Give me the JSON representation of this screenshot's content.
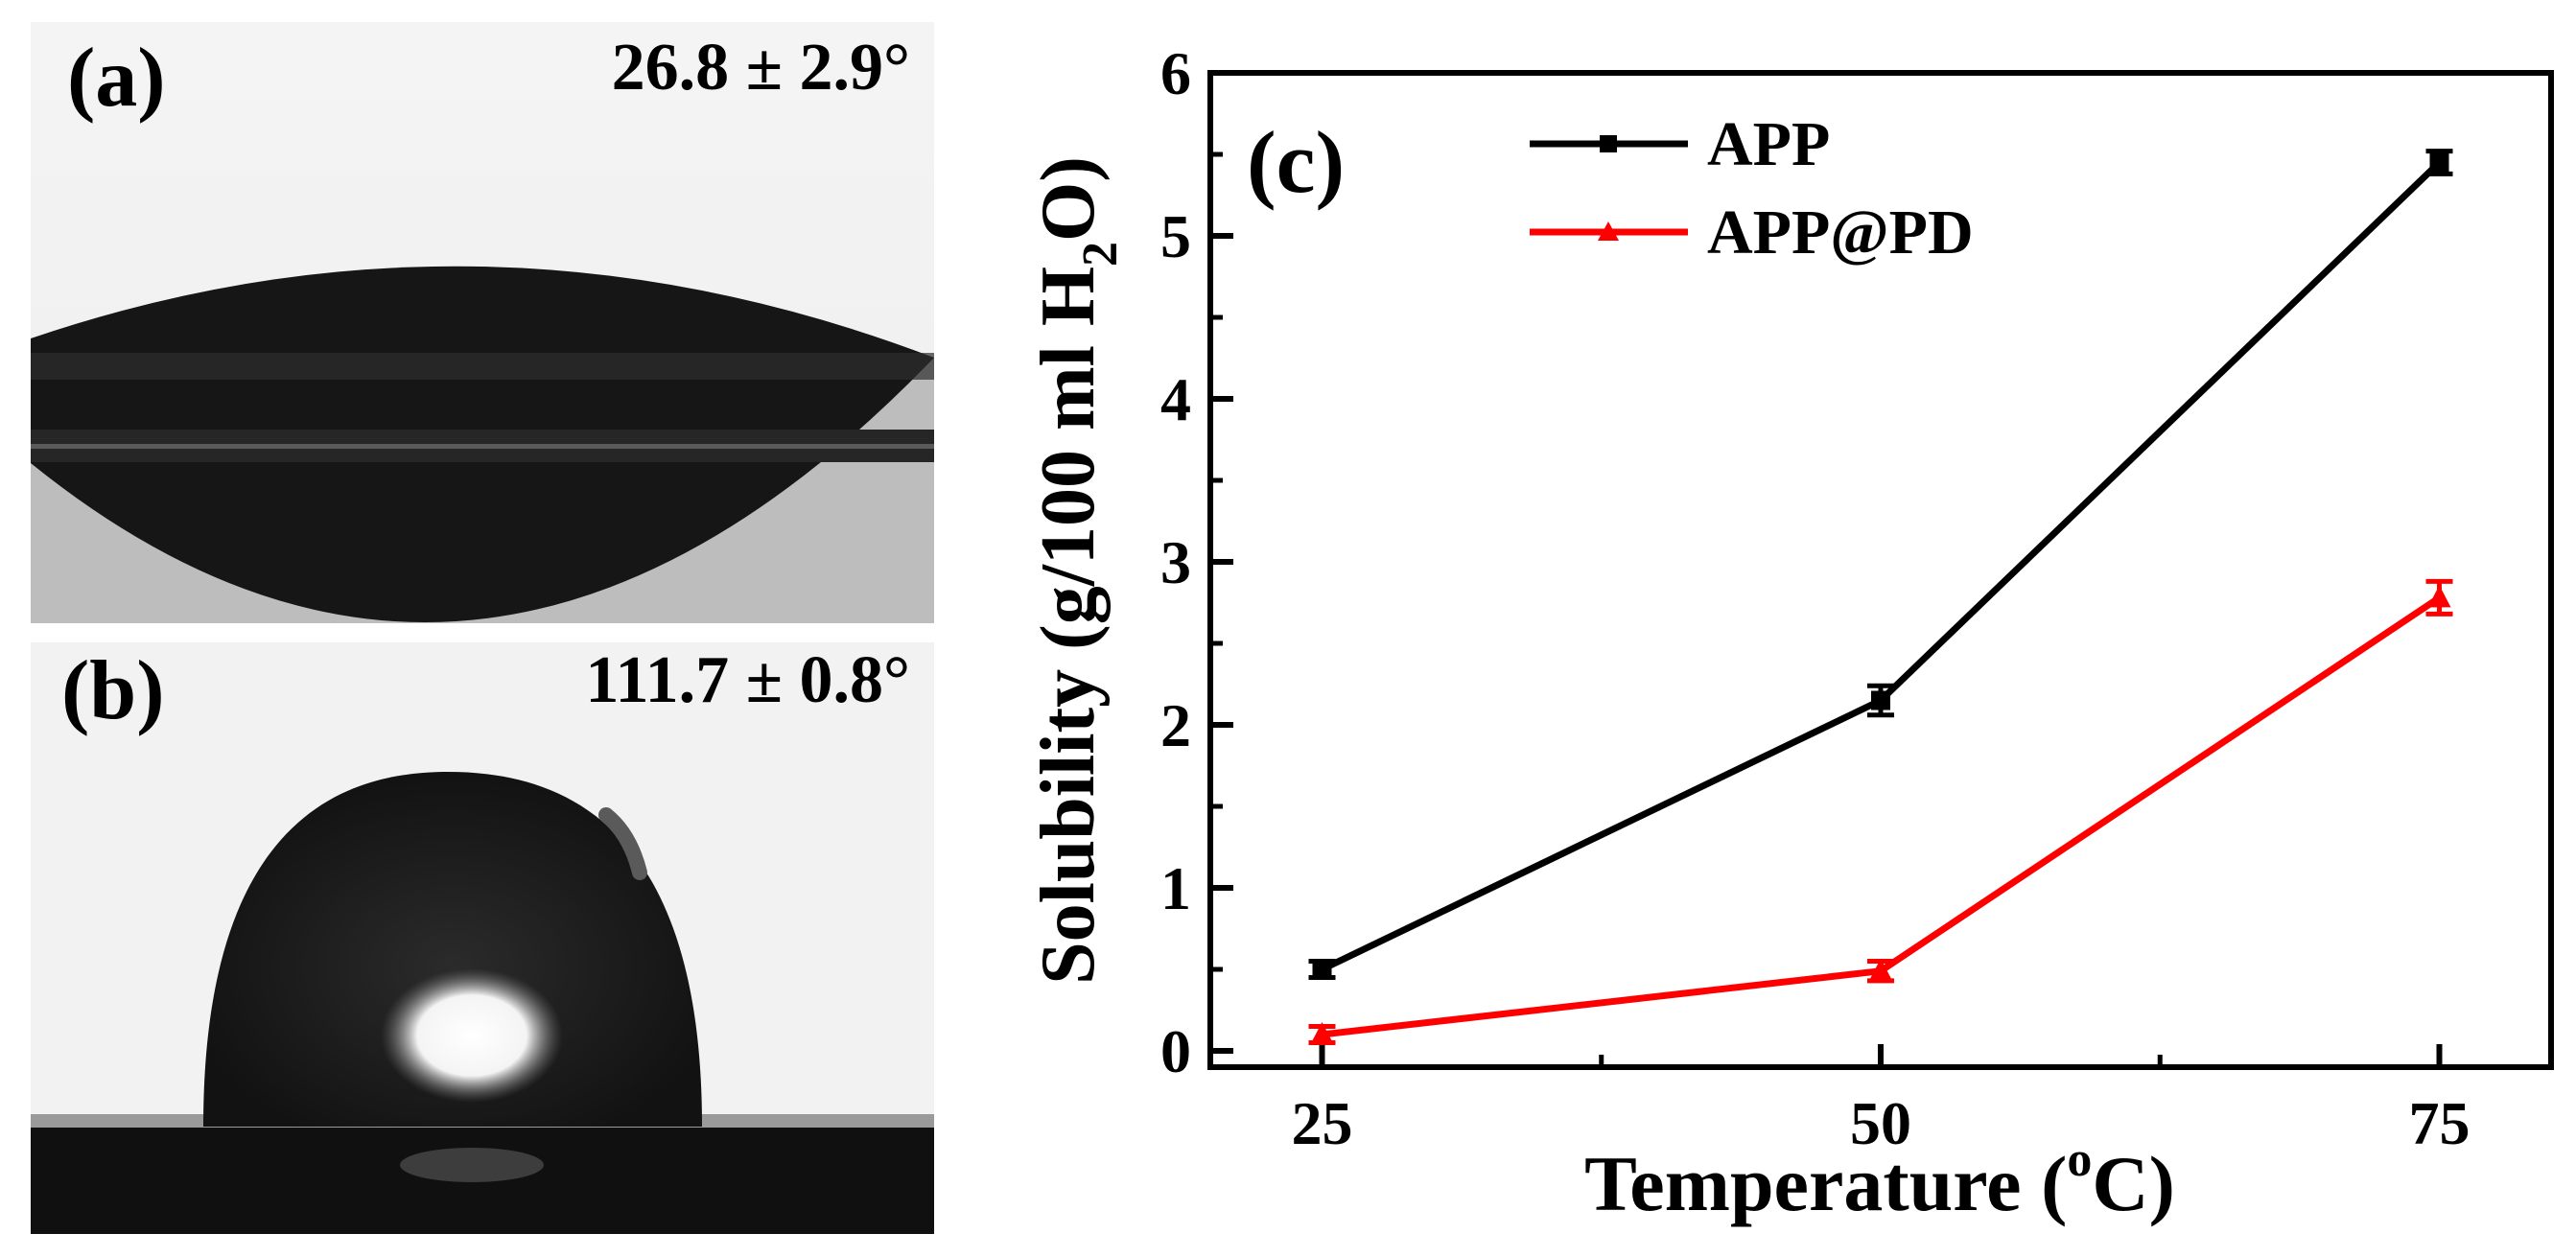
{
  "panels": {
    "a": {
      "label": "(a)",
      "contact_angle": "26.8 ± 2.9°"
    },
    "b": {
      "label": "(b)",
      "contact_angle": "111.7 ± 0.8°"
    }
  },
  "chart_data": {
    "type": "line",
    "panel_label": "(c)",
    "title": "",
    "xlabel": "Temperature (oC)",
    "xlabel_parts": {
      "main": "Temperature (",
      "sup": "o",
      "end": "C)"
    },
    "ylabel": "Solubility (g/100 ml H2O)",
    "ylabel_parts": {
      "main": "Solubility (g/100 ml H",
      "sub": "2",
      "end": "O)"
    },
    "x": [
      25,
      50,
      75
    ],
    "xticks": [
      "25",
      "50",
      "75"
    ],
    "xlim": [
      20,
      80
    ],
    "ylim": [
      -0.1,
      6
    ],
    "yticks": [
      "0",
      "1",
      "2",
      "3",
      "4",
      "5",
      "6"
    ],
    "legend_position": "top-left",
    "series": [
      {
        "name": "APP",
        "color": "#000000",
        "marker": "square",
        "values": [
          0.5,
          2.15,
          5.45
        ],
        "errors": [
          0.05,
          0.09,
          0.07
        ]
      },
      {
        "name": "APP@PD",
        "color": "#ff0000",
        "marker": "triangle",
        "values": [
          0.1,
          0.49,
          2.78
        ],
        "errors": [
          0.05,
          0.06,
          0.1
        ]
      }
    ]
  }
}
